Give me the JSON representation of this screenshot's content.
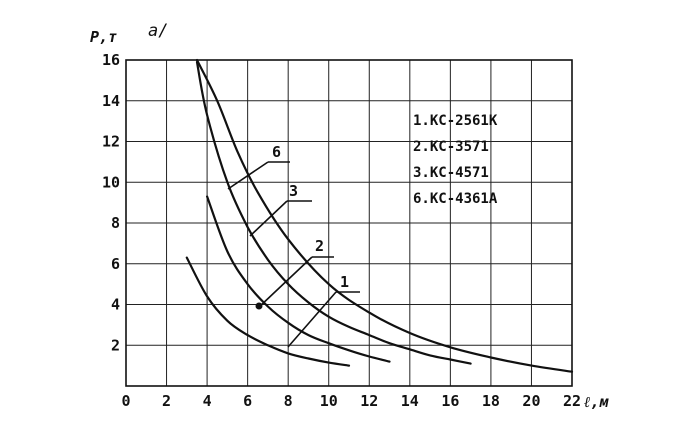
{
  "chart_data": {
    "type": "line",
    "panel_label": "а/",
    "xlabel": "ℓ,м",
    "ylabel": "P,т",
    "xlim": [
      0,
      22
    ],
    "ylim": [
      0,
      16
    ],
    "x_ticks": [
      "0",
      "2",
      "4",
      "6",
      "8",
      "10",
      "12",
      "14",
      "16",
      "18",
      "20",
      "22"
    ],
    "y_ticks": [
      "2",
      "4",
      "6",
      "8",
      "10",
      "12",
      "14",
      "16"
    ],
    "grid": true,
    "legend_position": "top-right",
    "legend": [
      "1.КС-2561К",
      "2.КС-3571",
      "3.КС-4571",
      "6.КС-4361А"
    ],
    "series": [
      {
        "label": "1",
        "points": [
          [
            3,
            6.3
          ],
          [
            4,
            4.4
          ],
          [
            5,
            3.2
          ],
          [
            6,
            2.5
          ],
          [
            7,
            2.0
          ],
          [
            8,
            1.6
          ],
          [
            9,
            1.35
          ],
          [
            10,
            1.15
          ],
          [
            11,
            1.0
          ]
        ]
      },
      {
        "label": "2",
        "points": [
          [
            4,
            9.3
          ],
          [
            5,
            6.6
          ],
          [
            6,
            5.0
          ],
          [
            7,
            3.9
          ],
          [
            8,
            3.1
          ],
          [
            9,
            2.5
          ],
          [
            10,
            2.1
          ],
          [
            11,
            1.75
          ],
          [
            12,
            1.45
          ],
          [
            13,
            1.2
          ]
        ]
      },
      {
        "label": "3",
        "points": [
          [
            3.5,
            15.9
          ],
          [
            4,
            13.3
          ],
          [
            5,
            10.0
          ],
          [
            6,
            7.8
          ],
          [
            7,
            6.2
          ],
          [
            8,
            5.0
          ],
          [
            9,
            4.1
          ],
          [
            10,
            3.4
          ],
          [
            11,
            2.9
          ],
          [
            12,
            2.5
          ],
          [
            13,
            2.1
          ],
          [
            14,
            1.8
          ],
          [
            15,
            1.5
          ],
          [
            16,
            1.3
          ],
          [
            17,
            1.1
          ]
        ]
      },
      {
        "label": "6",
        "points": [
          [
            3.5,
            16.0
          ],
          [
            4.5,
            14.0
          ],
          [
            5.5,
            11.5
          ],
          [
            6.5,
            9.5
          ],
          [
            8,
            7.2
          ],
          [
            10,
            5.0
          ],
          [
            12,
            3.6
          ],
          [
            14,
            2.6
          ],
          [
            16,
            1.9
          ],
          [
            18,
            1.4
          ],
          [
            20,
            1.0
          ],
          [
            22,
            0.7
          ]
        ]
      }
    ]
  }
}
